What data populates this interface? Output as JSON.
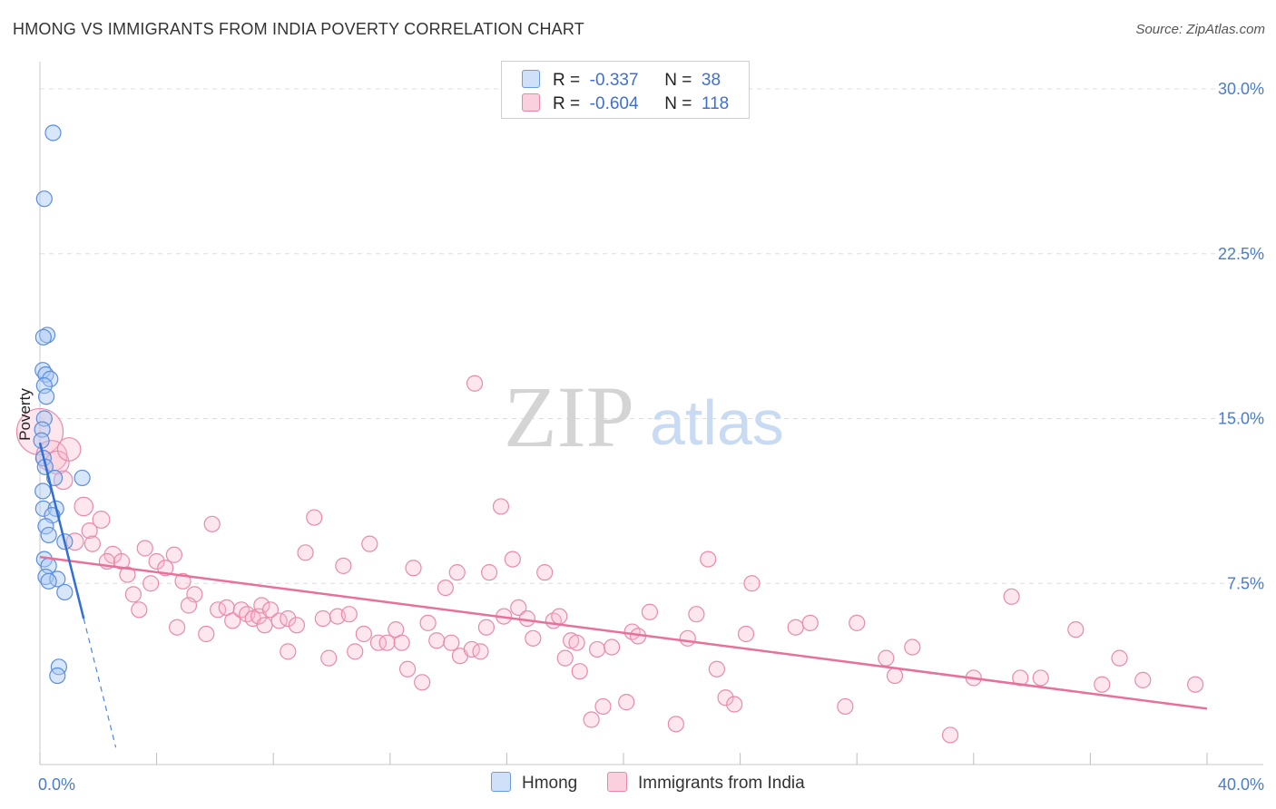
{
  "title": "HMONG VS IMMIGRANTS FROM INDIA POVERTY CORRELATION CHART",
  "source": "Source: ZipAtlas.com",
  "watermark": {
    "zip": "ZIP",
    "atlas": "atlas"
  },
  "legend": {
    "r_label": "R =",
    "n_label": "N =",
    "rows": [
      {
        "r": "-0.337",
        "n": "38",
        "color": "#a9c8f2"
      },
      {
        "r": "-0.604",
        "n": "118",
        "color": "#f8b8cc"
      }
    ]
  },
  "bottom_legend": [
    {
      "label": "Hmong",
      "color": "#a9c8f2"
    },
    {
      "label": "Immigrants from India",
      "color": "#f8b8cc"
    }
  ],
  "chart_data": {
    "type": "scatter",
    "title": "HMONG VS IMMIGRANTS FROM INDIA POVERTY CORRELATION CHART",
    "xlabel": "",
    "ylabel": "Poverty",
    "xlim": [
      0,
      40
    ],
    "ylim": [
      0,
      30
    ],
    "x_tick_labels": [
      "0.0%",
      "40.0%"
    ],
    "y_tick_labels": [
      "7.5%",
      "15.0%",
      "22.5%",
      "30.0%"
    ],
    "y_ticks": [
      7.5,
      15.0,
      22.5,
      30.0
    ],
    "grid": true,
    "series": [
      {
        "name": "Hmong",
        "color": "#4f86e0",
        "fill": "#a9c8f2",
        "R": -0.337,
        "N": 38,
        "trend": {
          "x1": 0.0,
          "y1": 13.9,
          "x2": 1.5,
          "y2": 5.9,
          "dashed_to_x": 2.6
        },
        "points": [
          [
            0.45,
            28.0,
            1
          ],
          [
            0.15,
            25.0,
            1
          ],
          [
            0.25,
            18.8,
            1
          ],
          [
            0.12,
            18.7,
            1
          ],
          [
            0.1,
            17.2,
            1
          ],
          [
            0.2,
            17.0,
            1
          ],
          [
            0.35,
            16.8,
            1
          ],
          [
            0.15,
            16.5,
            1
          ],
          [
            0.22,
            16.0,
            1
          ],
          [
            0.15,
            15.0,
            1
          ],
          [
            0.08,
            14.5,
            1
          ],
          [
            0.05,
            14.0,
            1
          ],
          [
            0.12,
            13.2,
            1
          ],
          [
            0.18,
            12.8,
            1
          ],
          [
            0.5,
            12.3,
            1
          ],
          [
            1.45,
            12.3,
            1
          ],
          [
            0.1,
            11.7,
            1
          ],
          [
            0.12,
            10.9,
            1
          ],
          [
            0.55,
            10.9,
            1
          ],
          [
            0.42,
            10.6,
            1
          ],
          [
            0.2,
            10.1,
            1
          ],
          [
            0.3,
            9.7,
            1
          ],
          [
            0.85,
            9.4,
            1
          ],
          [
            0.15,
            8.6,
            1
          ],
          [
            0.3,
            8.3,
            1
          ],
          [
            0.2,
            7.8,
            1
          ],
          [
            0.6,
            7.7,
            1
          ],
          [
            0.3,
            7.6,
            1
          ],
          [
            0.85,
            7.1,
            1
          ],
          [
            0.65,
            3.7,
            1
          ],
          [
            0.6,
            3.3,
            1
          ]
        ]
      },
      {
        "name": "Immigrants from India",
        "color": "#e8709b",
        "fill": "#f8b8cc",
        "R": -0.604,
        "N": 118,
        "trend": {
          "x1": 0.0,
          "y1": 8.7,
          "x2": 40.0,
          "y2": 1.8
        },
        "points": [
          [
            0.0,
            14.4,
            3
          ],
          [
            0.4,
            13.3,
            2
          ],
          [
            0.6,
            13.0,
            1.5
          ],
          [
            1.0,
            13.6,
            1.5
          ],
          [
            0.8,
            12.2,
            1.2
          ],
          [
            1.5,
            11.0,
            1.2
          ],
          [
            2.1,
            10.4,
            1.1
          ],
          [
            1.7,
            9.9,
            1
          ],
          [
            1.2,
            9.4,
            1.1
          ],
          [
            1.8,
            9.3,
            1
          ],
          [
            2.5,
            8.8,
            1.1
          ],
          [
            2.3,
            8.5,
            1
          ],
          [
            2.8,
            8.5,
            1
          ],
          [
            3.0,
            7.9,
            1
          ],
          [
            3.2,
            7.0,
            1
          ],
          [
            3.4,
            6.3,
            1
          ],
          [
            3.6,
            9.1,
            1
          ],
          [
            4.0,
            8.5,
            1
          ],
          [
            4.3,
            8.2,
            1
          ],
          [
            4.6,
            8.8,
            1
          ],
          [
            3.8,
            7.5,
            1
          ],
          [
            4.9,
            7.6,
            1
          ],
          [
            5.3,
            7.0,
            1
          ],
          [
            5.1,
            6.5,
            1
          ],
          [
            4.7,
            5.5,
            1
          ],
          [
            5.7,
            5.2,
            1
          ],
          [
            5.9,
            10.2,
            1
          ],
          [
            6.1,
            6.3,
            1
          ],
          [
            6.4,
            6.4,
            1
          ],
          [
            6.6,
            5.8,
            1
          ],
          [
            6.9,
            6.3,
            1
          ],
          [
            7.1,
            6.1,
            1
          ],
          [
            7.3,
            5.9,
            1
          ],
          [
            7.5,
            6.0,
            1
          ],
          [
            7.7,
            5.6,
            1
          ],
          [
            7.6,
            6.5,
            1
          ],
          [
            7.9,
            6.3,
            1
          ],
          [
            8.2,
            5.8,
            1
          ],
          [
            8.5,
            5.9,
            1
          ],
          [
            8.8,
            5.6,
            1
          ],
          [
            9.1,
            8.9,
            1
          ],
          [
            9.4,
            10.5,
            1
          ],
          [
            8.5,
            4.4,
            1
          ],
          [
            9.7,
            5.9,
            1
          ],
          [
            9.9,
            4.1,
            1
          ],
          [
            10.2,
            6.0,
            1
          ],
          [
            10.4,
            8.3,
            1
          ],
          [
            10.6,
            6.1,
            1
          ],
          [
            10.8,
            4.4,
            1
          ],
          [
            11.1,
            5.2,
            1
          ],
          [
            11.3,
            9.3,
            1
          ],
          [
            11.6,
            4.8,
            1
          ],
          [
            11.9,
            4.8,
            1
          ],
          [
            12.2,
            5.4,
            1
          ],
          [
            12.4,
            4.8,
            1
          ],
          [
            12.6,
            3.6,
            1
          ],
          [
            12.8,
            8.2,
            1
          ],
          [
            13.1,
            3.0,
            1
          ],
          [
            13.3,
            5.7,
            1
          ],
          [
            13.6,
            4.9,
            1
          ],
          [
            13.9,
            7.3,
            1
          ],
          [
            14.1,
            4.8,
            1
          ],
          [
            14.3,
            8.0,
            1
          ],
          [
            14.4,
            4.2,
            1
          ],
          [
            14.8,
            4.5,
            1
          ],
          [
            15.1,
            4.4,
            1
          ],
          [
            15.3,
            5.5,
            1
          ],
          [
            15.4,
            8.0,
            1
          ],
          [
            14.9,
            16.6,
            1
          ],
          [
            15.8,
            11.0,
            1
          ],
          [
            15.9,
            6.0,
            1
          ],
          [
            16.2,
            8.6,
            1
          ],
          [
            16.4,
            6.4,
            1
          ],
          [
            16.7,
            5.9,
            1
          ],
          [
            16.9,
            5.0,
            1
          ],
          [
            17.3,
            8.0,
            1
          ],
          [
            17.6,
            5.8,
            1
          ],
          [
            17.8,
            6.0,
            1
          ],
          [
            18.0,
            4.1,
            1
          ],
          [
            18.2,
            4.9,
            1
          ],
          [
            18.4,
            4.8,
            1
          ],
          [
            18.5,
            3.5,
            1
          ],
          [
            18.9,
            1.3,
            1
          ],
          [
            19.1,
            4.5,
            1
          ],
          [
            19.3,
            1.9,
            1
          ],
          [
            19.6,
            4.6,
            1
          ],
          [
            20.1,
            2.1,
            1
          ],
          [
            20.3,
            5.3,
            1
          ],
          [
            20.5,
            5.1,
            1
          ],
          [
            20.9,
            6.2,
            1
          ],
          [
            21.8,
            1.1,
            1
          ],
          [
            22.2,
            5.0,
            1
          ],
          [
            22.5,
            6.1,
            1
          ],
          [
            22.9,
            8.6,
            1
          ],
          [
            23.2,
            3.6,
            1
          ],
          [
            23.5,
            2.3,
            1
          ],
          [
            23.8,
            2.0,
            1
          ],
          [
            24.2,
            5.2,
            1
          ],
          [
            24.4,
            7.5,
            1
          ],
          [
            25.9,
            5.5,
            1
          ],
          [
            26.4,
            5.7,
            1
          ],
          [
            28.0,
            5.7,
            1
          ],
          [
            27.6,
            1.9,
            1
          ],
          [
            29.0,
            4.1,
            1
          ],
          [
            29.3,
            3.3,
            1
          ],
          [
            29.9,
            4.6,
            1
          ],
          [
            31.2,
            0.6,
            1
          ],
          [
            32.0,
            3.2,
            1
          ],
          [
            33.3,
            6.9,
            1
          ],
          [
            33.6,
            3.2,
            1
          ],
          [
            34.3,
            3.2,
            1
          ],
          [
            35.5,
            5.4,
            1
          ],
          [
            36.4,
            2.9,
            1
          ],
          [
            37.0,
            4.1,
            1
          ],
          [
            37.8,
            3.1,
            1
          ],
          [
            39.6,
            2.9,
            1
          ]
        ]
      }
    ]
  }
}
